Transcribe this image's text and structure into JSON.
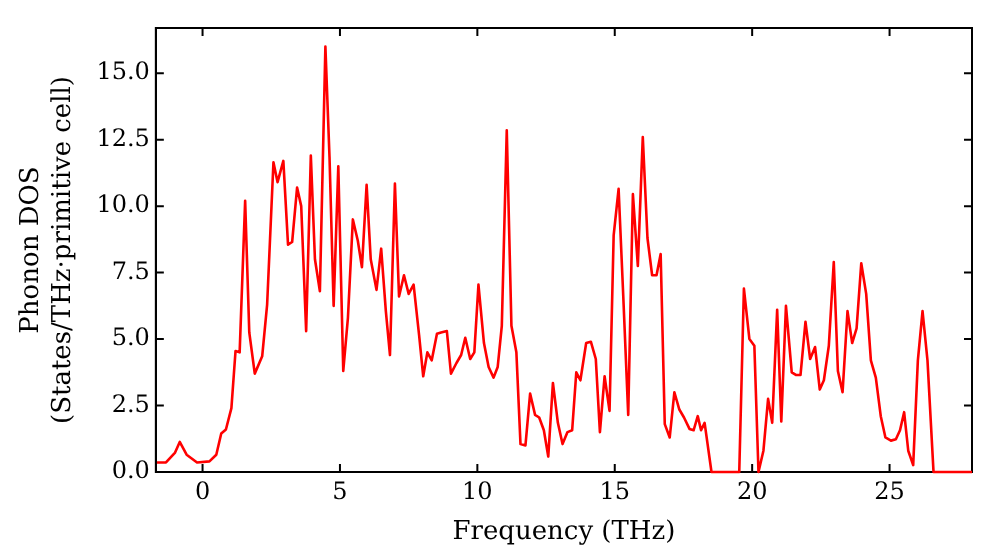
{
  "chart_data": {
    "type": "line",
    "xlabel": "Frequency (THz)",
    "ylabel": "Phonon DOS\n(States/THz·primitive cell)",
    "xlim": [
      -1.7,
      28
    ],
    "xticks": [
      0,
      5,
      10,
      15,
      20,
      25
    ],
    "ylim": [
      0,
      16.7
    ],
    "yticks": [
      {
        "value": 0,
        "label": "0.0"
      },
      {
        "value": 2.5,
        "label": "2.5"
      },
      {
        "value": 5,
        "label": "5.0"
      },
      {
        "value": 7.5,
        "label": "7.5"
      },
      {
        "value": 10,
        "label": "10.0"
      },
      {
        "value": 12.5,
        "label": "12.5"
      },
      {
        "value": 15,
        "label": "15.0"
      }
    ],
    "grid": false,
    "legend": false,
    "marker": "none",
    "line_style": "solid",
    "series": [
      {
        "color": "#ff0000",
        "x": [
          -1.66,
          -1.33,
          -1.0,
          -0.83,
          -0.58,
          -0.2,
          0.25,
          0.5,
          0.68,
          0.85,
          1.05,
          1.2,
          1.35,
          1.55,
          1.7,
          1.9,
          2.17,
          2.35,
          2.58,
          2.73,
          2.94,
          3.11,
          3.26,
          3.44,
          3.59,
          3.77,
          3.94,
          4.09,
          4.27,
          4.47,
          4.62,
          4.77,
          4.94,
          5.12,
          5.29,
          5.47,
          5.65,
          5.8,
          5.97,
          6.12,
          6.33,
          6.5,
          6.67,
          6.82,
          7.0,
          7.15,
          7.33,
          7.5,
          7.68,
          7.88,
          8.03,
          8.18,
          8.34,
          8.53,
          8.68,
          8.89,
          9.04,
          9.24,
          9.41,
          9.56,
          9.74,
          9.89,
          10.04,
          10.24,
          10.41,
          10.59,
          10.74,
          10.89,
          11.07,
          11.24,
          11.42,
          11.57,
          11.75,
          11.92,
          12.1,
          12.25,
          12.42,
          12.58,
          12.75,
          12.93,
          13.1,
          13.28,
          13.45,
          13.6,
          13.75,
          13.96,
          14.13,
          14.31,
          14.46,
          14.63,
          14.81,
          14.96,
          15.14,
          15.31,
          15.49,
          15.66,
          15.84,
          16.02,
          16.19,
          16.36,
          16.52,
          16.67,
          16.82,
          17.0,
          17.17,
          17.35,
          17.52,
          17.72,
          17.87,
          18.02,
          18.14,
          18.27,
          18.52,
          19.53,
          19.7,
          19.9,
          20.08,
          20.23,
          20.41,
          20.58,
          20.73,
          20.91,
          21.06,
          21.23,
          21.44,
          21.59,
          21.76,
          21.94,
          22.11,
          22.29,
          22.46,
          22.61,
          22.79,
          22.97,
          23.12,
          23.29,
          23.47,
          23.64,
          23.8,
          23.97,
          24.15,
          24.32,
          24.5,
          24.68,
          24.85,
          25.05,
          25.23,
          25.38,
          25.53,
          25.68,
          25.86,
          26.03,
          26.2,
          26.38,
          26.6,
          28.0
        ],
        "values": [
          0.36,
          0.36,
          0.73,
          1.13,
          0.65,
          0.36,
          0.4,
          0.65,
          1.45,
          1.6,
          2.4,
          4.55,
          4.5,
          10.2,
          5.25,
          3.7,
          4.35,
          6.3,
          11.65,
          10.9,
          11.7,
          8.55,
          8.65,
          10.7,
          10.0,
          5.3,
          11.9,
          8.0,
          6.8,
          16.0,
          11.85,
          6.25,
          11.5,
          3.8,
          5.8,
          9.5,
          8.7,
          7.7,
          10.8,
          8.0,
          6.85,
          8.4,
          6.05,
          4.4,
          10.85,
          6.6,
          7.4,
          6.7,
          7.05,
          5.15,
          3.6,
          4.5,
          4.2,
          5.2,
          5.25,
          5.3,
          3.7,
          4.1,
          4.4,
          5.05,
          4.25,
          4.5,
          7.05,
          4.85,
          3.95,
          3.55,
          3.95,
          5.5,
          12.85,
          5.5,
          4.5,
          1.05,
          1.0,
          2.95,
          2.15,
          2.05,
          1.57,
          0.58,
          3.35,
          1.85,
          1.05,
          1.5,
          1.57,
          3.75,
          3.45,
          4.85,
          4.9,
          4.25,
          1.5,
          3.6,
          2.3,
          8.9,
          10.65,
          6.6,
          2.15,
          10.45,
          7.75,
          12.6,
          8.8,
          7.4,
          7.4,
          8.2,
          1.8,
          1.3,
          3.0,
          2.35,
          2.05,
          1.62,
          1.57,
          2.1,
          1.57,
          1.85,
          0,
          0,
          6.9,
          5.0,
          4.75,
          0,
          0.8,
          2.75,
          1.85,
          6.1,
          1.9,
          6.25,
          3.75,
          3.65,
          3.65,
          5.65,
          4.25,
          4.7,
          3.1,
          3.45,
          4.75,
          7.9,
          3.8,
          3.0,
          6.05,
          4.85,
          5.4,
          7.85,
          6.7,
          4.2,
          3.55,
          2.1,
          1.3,
          1.18,
          1.23,
          1.57,
          2.25,
          0.8,
          0.26,
          4.2,
          6.05,
          4.2,
          0,
          0
        ]
      }
    ]
  }
}
